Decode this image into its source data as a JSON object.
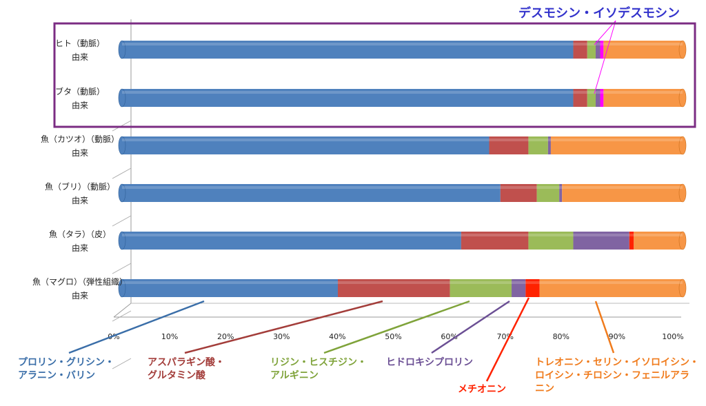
{
  "chart_data": {
    "type": "bar",
    "orientation": "horizontal",
    "stacked": "100%",
    "categories": [
      [
        "ヒト（動脈）",
        "由来"
      ],
      [
        "ブタ（動脈）",
        "由来"
      ],
      [
        "魚（カツオ）（動脈）",
        "由来"
      ],
      [
        "魚（ブリ）（動脈）",
        "由来"
      ],
      [
        "魚（タラ）（皮）",
        "由来"
      ],
      [
        "魚（マグロ）（弾性組織）",
        "由来"
      ]
    ],
    "xticks": [
      "0%",
      "10%",
      "20%",
      "30%",
      "40%",
      "50%",
      "60%",
      "70%",
      "80%",
      "90%",
      "100%"
    ],
    "xlim": [
      0,
      100
    ],
    "grid": false,
    "series": [
      {
        "name": "プロリン・グリシン・アラニン・バリン",
        "color": "#4f81bd",
        "values": [
          80.5,
          80.5,
          65.5,
          67.5,
          60.5,
          38.5
        ]
      },
      {
        "name": "アスパラギン酸・グルタミン酸",
        "color": "#c0504d",
        "values": [
          2.5,
          2.5,
          7.0,
          6.5,
          12.0,
          20.0
        ]
      },
      {
        "name": "リジン・ヒスチジン・アルギニン",
        "color": "#9bbb59",
        "values": [
          1.5,
          1.5,
          3.5,
          4.0,
          8.0,
          11.0
        ]
      },
      {
        "name": "ヒドロキシプロリン",
        "color": "#8064a2",
        "values": [
          0.8,
          0.8,
          0.5,
          0.5,
          10.0,
          2.5
        ]
      },
      {
        "name": "デスモシン・イソデスモシン",
        "color": "#ff00ff",
        "values": [
          0.6,
          0.6,
          0,
          0,
          0,
          0
        ]
      },
      {
        "name": "メチオニン",
        "color": "#ff2200",
        "values": [
          0,
          0,
          0,
          0,
          0.8,
          2.5
        ]
      },
      {
        "name": "トレオニン・セリン・イソロイシン・ロイシン・チロシン・フェニルアラニン",
        "color": "#f79646",
        "values": [
          14.1,
          14.1,
          23.5,
          21.5,
          8.7,
          25.5
        ]
      }
    ]
  },
  "annotations": {
    "top_label": "デスモシン・イソデスモシン",
    "highlight_color": "#7b2c83",
    "labels": [
      {
        "lines": [
          "プロリン・グリシン・",
          "アラニン・バリン"
        ],
        "color": "#3a6ea8"
      },
      {
        "lines": [
          "アスパラギン酸・",
          "グルタミン酸"
        ],
        "color": "#a33d3a"
      },
      {
        "lines": [
          "リジン・ヒスチジン・",
          "アルギニン"
        ],
        "color": "#7fa33a"
      },
      {
        "lines": [
          "ヒドロキシプロリン"
        ],
        "color": "#6b4f94"
      },
      {
        "lines": [
          "メチオニン"
        ],
        "color": "#ff2200"
      },
      {
        "lines": [
          "トレオニン・セリン・イソロイシン・",
          "ロイシン・チロシン・フェニルアラ",
          "ニン"
        ],
        "color": "#f07b1c"
      }
    ]
  }
}
